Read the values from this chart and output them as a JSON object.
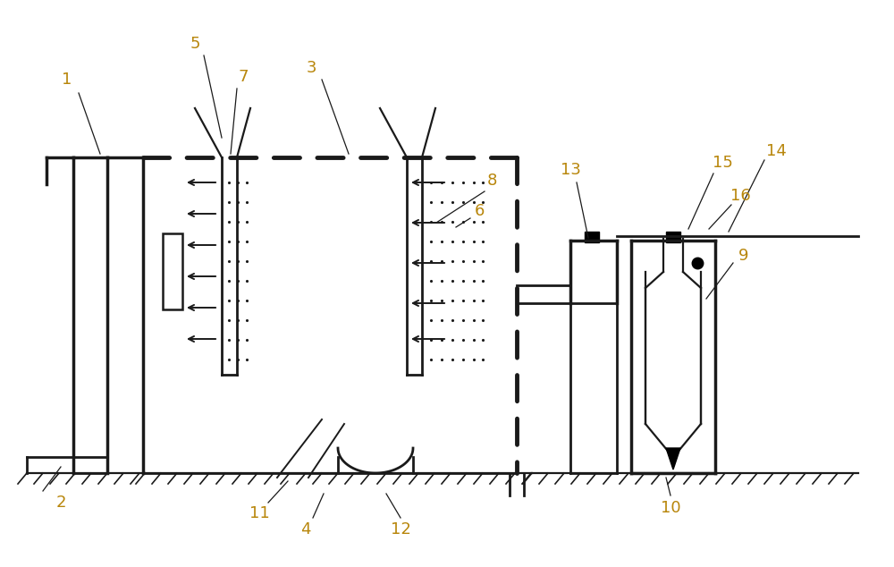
{
  "bg_color": "#ffffff",
  "lc": "#1a1a1a",
  "label_color": "#b8860b",
  "figsize": [
    10.0,
    6.34
  ],
  "dpi": 100
}
